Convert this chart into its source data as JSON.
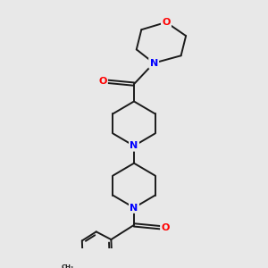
{
  "bg_color": "#e8e8e8",
  "bond_color": "#1a1a1a",
  "N_color": "#0000ff",
  "O_color": "#ff0000",
  "font_size_atom": 8.0,
  "line_width": 1.4,
  "fig_size": [
    3.0,
    3.0
  ],
  "dpi": 100,
  "xlim": [
    1.0,
    9.0
  ],
  "ylim": [
    0.5,
    10.5
  ]
}
